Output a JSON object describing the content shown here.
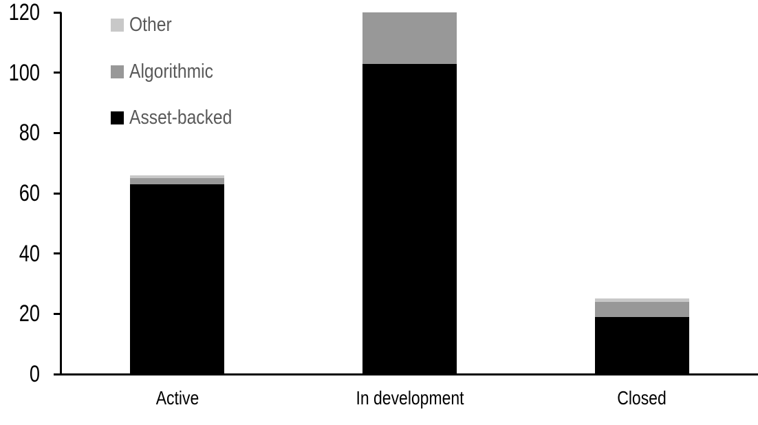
{
  "chart_data": {
    "type": "bar",
    "stacked": true,
    "title": "",
    "xlabel": "",
    "ylabel": "",
    "categories": [
      "Active",
      "In development",
      "Closed"
    ],
    "series": [
      {
        "name": "Other",
        "color": "#c8c8c8",
        "values": [
          1,
          0,
          1
        ]
      },
      {
        "name": "Algorithmic",
        "color": "#989898",
        "values": [
          2,
          17,
          5
        ]
      },
      {
        "name": "Asset-backed",
        "color": "#000000",
        "values": [
          63,
          103,
          19
        ]
      }
    ],
    "totals": [
      66,
      120,
      25
    ],
    "ylim": [
      0,
      120
    ],
    "yticks": [
      0,
      20,
      40,
      60,
      80,
      100,
      120
    ],
    "grid": false,
    "legend_position": "top-left"
  },
  "colors": {
    "background": "#ffffff",
    "axis": "#000000",
    "axis_text": "#000000",
    "legend_text": "#595959"
  }
}
